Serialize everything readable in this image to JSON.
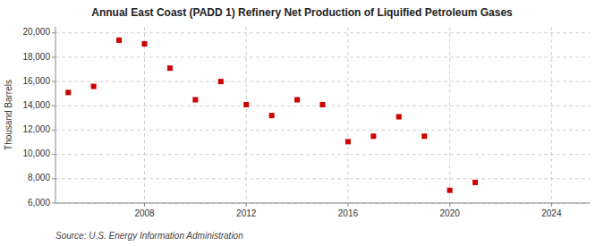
{
  "chart_data": {
    "type": "scatter",
    "title": "Annual East Coast (PADD 1) Refinery Net Production of Liquified Petroleum Gases",
    "ylabel": "Thousand Barrels",
    "source": "Source: U.S. Energy Information Administration",
    "x": [
      2005,
      2006,
      2007,
      2008,
      2009,
      2010,
      2011,
      2012,
      2013,
      2014,
      2015,
      2016,
      2017,
      2018,
      2019,
      2020,
      2021
    ],
    "values": [
      15100,
      15600,
      19400,
      19100,
      17100,
      14500,
      16000,
      14100,
      13200,
      14500,
      14100,
      11050,
      11500,
      13100,
      11500,
      7050,
      7700
    ],
    "color": "#cc0000",
    "marker": "square",
    "xlim": [
      2004.5,
      2025.5
    ],
    "ylim": [
      6000,
      20500
    ],
    "xticks": [
      2008,
      2012,
      2016,
      2020,
      2024
    ],
    "yticks": [
      {
        "value": 6000,
        "label": "6,000"
      },
      {
        "value": 8000,
        "label": "8,000"
      },
      {
        "value": 10000,
        "label": "10,000"
      },
      {
        "value": 12000,
        "label": "12,000"
      },
      {
        "value": 14000,
        "label": "14,000"
      },
      {
        "value": 16000,
        "label": "16,000"
      },
      {
        "value": 18000,
        "label": "18,000"
      },
      {
        "value": 20000,
        "label": "20,000"
      }
    ],
    "grid": true
  }
}
